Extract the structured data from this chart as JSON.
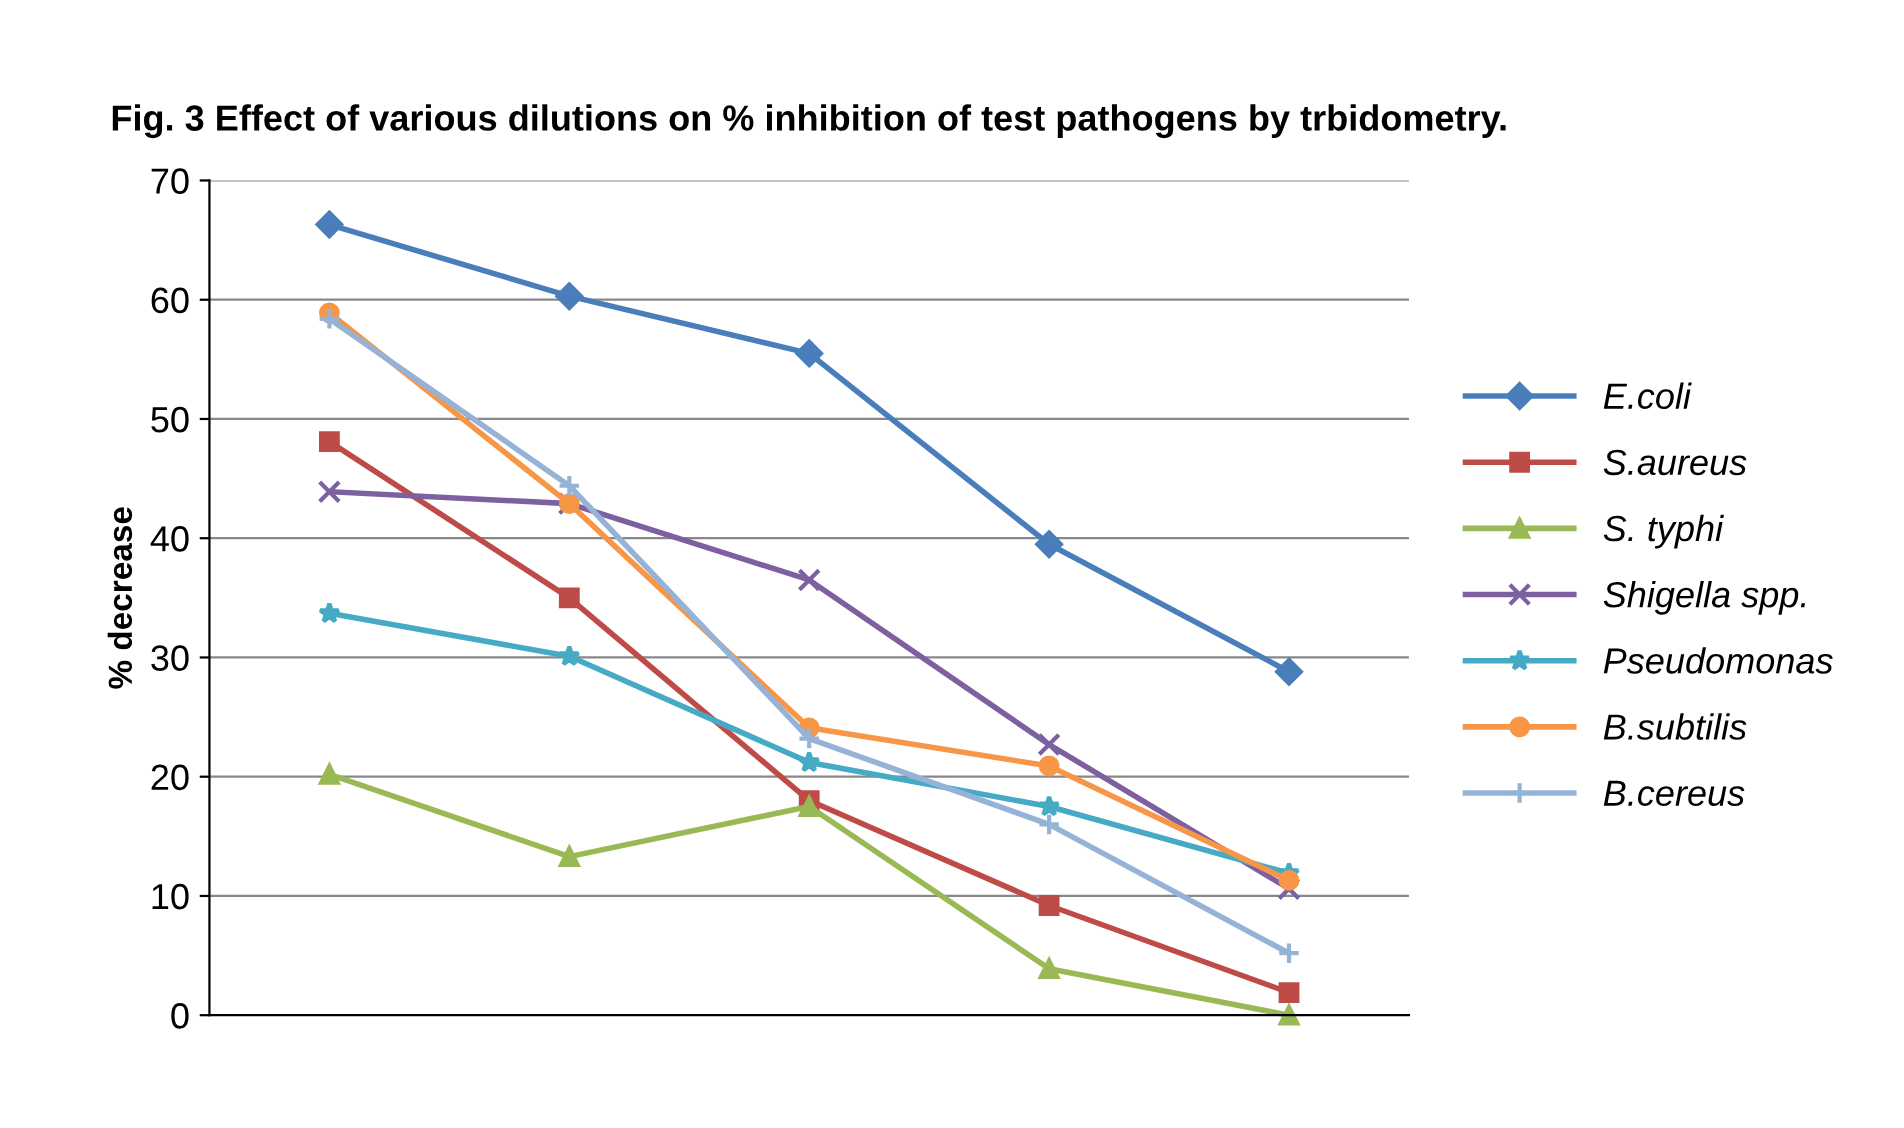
{
  "chart_data": {
    "type": "line",
    "title": "Fig. 3 Effect of various dilutions on % inhibition of test pathogens by trbidometry.",
    "ylabel": "% decrease",
    "categories": [
      null,
      null,
      null,
      null,
      null
    ],
    "ylim": [
      0,
      70
    ],
    "yticks": [
      0,
      10,
      20,
      30,
      40,
      50,
      60,
      70
    ],
    "grid": "y",
    "legend": "right",
    "line_style": "solid",
    "series": [
      {
        "name": "E.coli",
        "color": "#4a7ebb",
        "marker": "diamond",
        "values": [
          66.3,
          60.3,
          55.5,
          39.5,
          28.8
        ]
      },
      {
        "name": "S.aureus",
        "color": "#be4b48",
        "marker": "square",
        "values": [
          48.1,
          35,
          18,
          9.2,
          1.9
        ]
      },
      {
        "name": "S. typhi",
        "color": "#98b954",
        "marker": "triangle",
        "values": [
          20.2,
          13.3,
          17.5,
          3.9,
          0
        ]
      },
      {
        "name": "Shigella spp.",
        "color": "#7d60a0",
        "marker": "cross",
        "values": [
          43.9,
          42.9,
          36.5,
          22.7,
          10.6
        ]
      },
      {
        "name": "Pseudomonas",
        "color": "#46aac5",
        "marker": "star",
        "values": [
          33.7,
          30.1,
          21.2,
          17.5,
          11.9
        ]
      },
      {
        "name": "B.subtilis",
        "color": "#f79646",
        "marker": "circle",
        "values": [
          58.9,
          42.9,
          24.1,
          20.9,
          11.3
        ]
      },
      {
        "name": "B.cereus",
        "color": "#95b3d7",
        "marker": "plus",
        "values": [
          58.4,
          44.4,
          23.2,
          16,
          5.2
        ]
      }
    ]
  }
}
